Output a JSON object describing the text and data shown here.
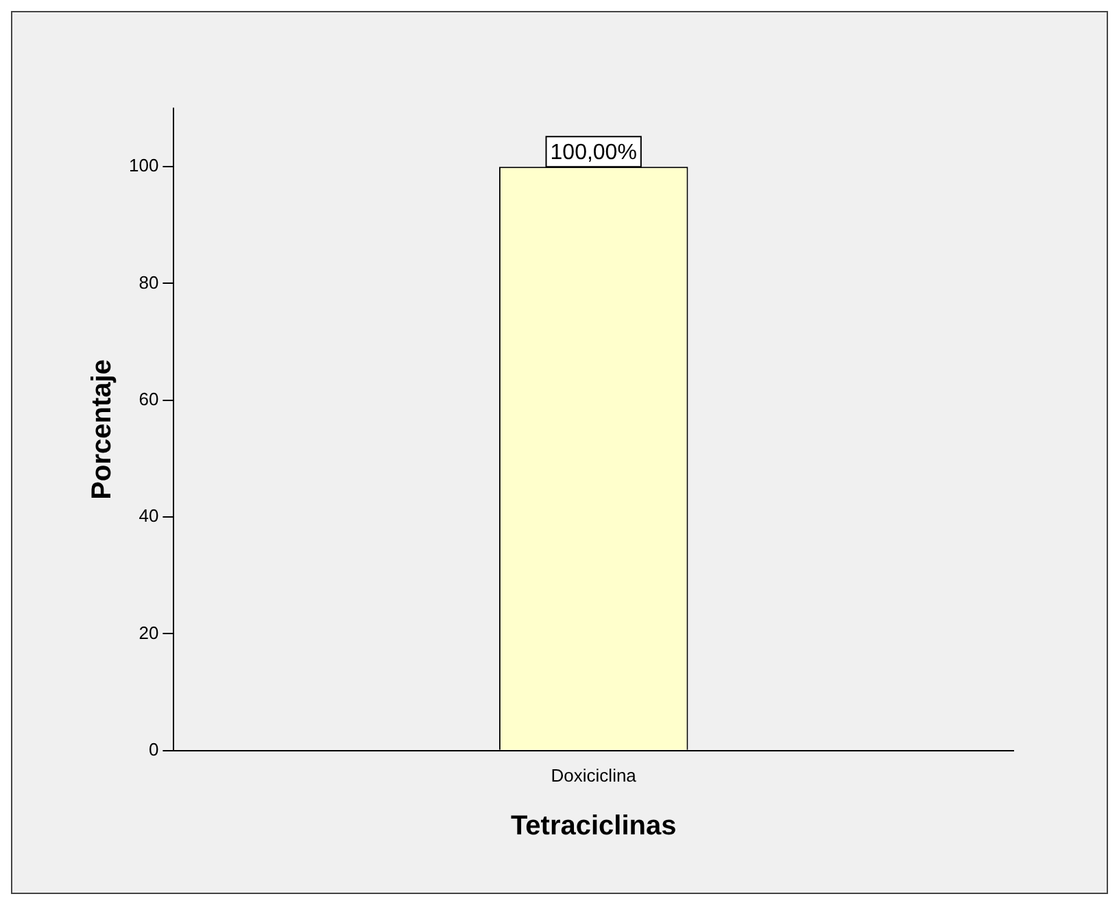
{
  "chart_data": {
    "type": "bar",
    "xlabel": "Tetraciclinas",
    "ylabel": "Porcentaje",
    "categories": [
      "Doxiciclina"
    ],
    "values": [
      100
    ],
    "color": "#ffffcc",
    "value_labels": [
      "100,00%"
    ],
    "ylim": [
      0,
      110
    ],
    "yticks": [
      0,
      20,
      40,
      60,
      80,
      100
    ],
    "grid": false,
    "legend": false
  }
}
